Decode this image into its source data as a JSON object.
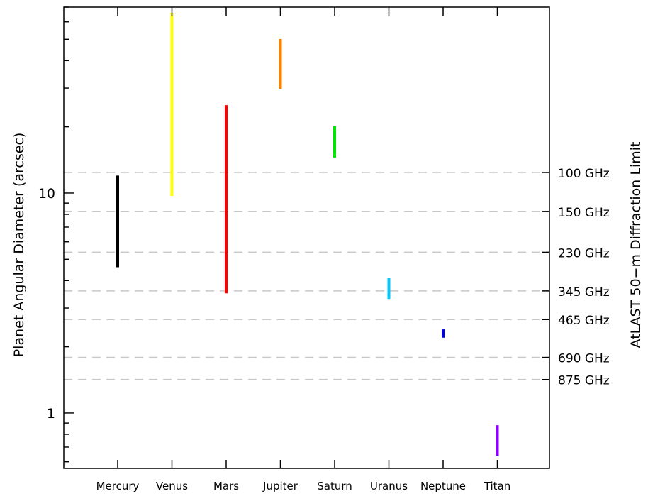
{
  "chart_data": {
    "type": "range-bar",
    "ylabel_left": "Planet Angular Diameter (arcsec)",
    "ylabel_right": "AtLAST 50−m Diffraction Limit",
    "yscale": "log",
    "ylim": [
      0.56,
      70
    ],
    "left_ticks": [
      {
        "value": 1,
        "label": "1"
      },
      {
        "value": 10,
        "label": "10"
      }
    ],
    "grid_style": "dashed",
    "categories": [
      "Mercury",
      "Venus",
      "Mars",
      "Jupiter",
      "Saturn",
      "Uranus",
      "Neptune",
      "Titan"
    ],
    "ranges": [
      {
        "name": "Mercury",
        "low": 4.6,
        "high": 12.0,
        "color": "#000000"
      },
      {
        "name": "Venus",
        "low": 9.7,
        "high": 66.0,
        "color": "#ffff00"
      },
      {
        "name": "Mars",
        "low": 3.5,
        "high": 25.1,
        "color": "#ff0000"
      },
      {
        "name": "Jupiter",
        "low": 29.8,
        "high": 50.1,
        "color": "#ff8000"
      },
      {
        "name": "Saturn",
        "low": 14.5,
        "high": 20.1,
        "color": "#00e600"
      },
      {
        "name": "Uranus",
        "low": 3.3,
        "high": 4.1,
        "color": "#00c8ff"
      },
      {
        "name": "Neptune",
        "low": 2.2,
        "high": 2.4,
        "color": "#0000e6"
      },
      {
        "name": "Titan",
        "low": 0.64,
        "high": 0.88,
        "color": "#8c00ff"
      }
    ],
    "diffraction_limits": [
      {
        "label": "100 GHz",
        "value": 12.4
      },
      {
        "label": "150 GHz",
        "value": 8.25
      },
      {
        "label": "230 GHz",
        "value": 5.38
      },
      {
        "label": "345 GHz",
        "value": 3.59
      },
      {
        "label": "465 GHz",
        "value": 2.66
      },
      {
        "label": "690 GHz",
        "value": 1.79
      },
      {
        "label": "875 GHz",
        "value": 1.42
      }
    ]
  }
}
